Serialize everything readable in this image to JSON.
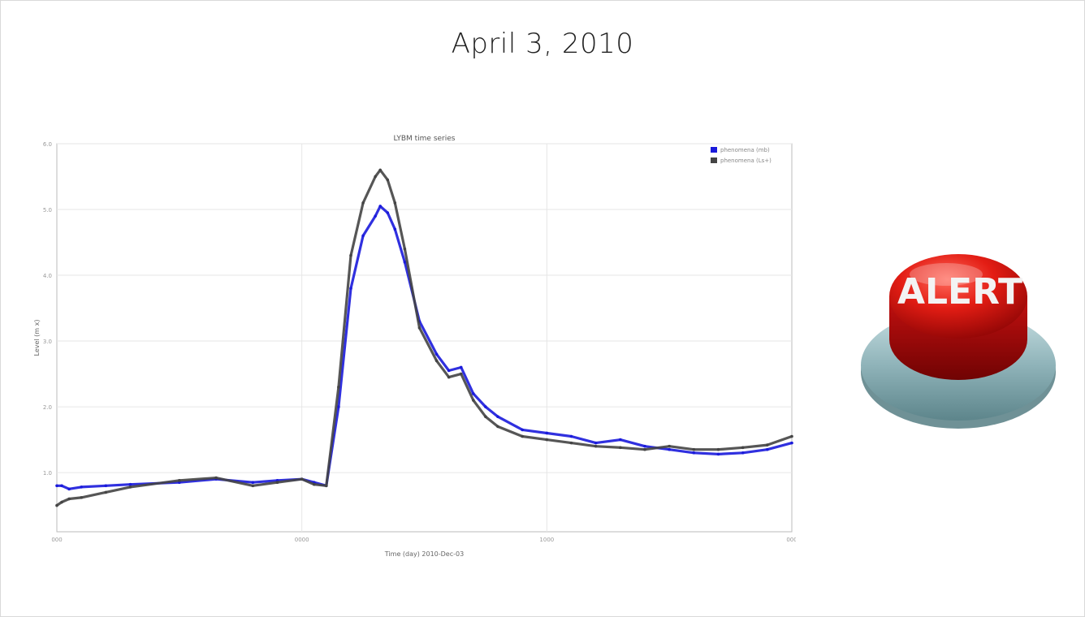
{
  "slide": {
    "title": "April 3, 2010"
  },
  "alert_button": {
    "label": "ALERT",
    "base_color": "#8fb3b9",
    "cap_color": "#d41616"
  },
  "chart_data": {
    "type": "line",
    "title": "LYBM time series",
    "xlabel": "Time (day) 2010-Dec-03",
    "ylabel": "Level (m x)",
    "x_tick_labels": [
      "000",
      "0000",
      "1000",
      "000"
    ],
    "y_tick_labels": [
      "1.0",
      "2.0",
      "3.0",
      "4.0",
      "5.0",
      "6.0"
    ],
    "xlim": [
      0,
      3
    ],
    "ylim": [
      0.1,
      6.0
    ],
    "grid": true,
    "legend_position": "top-right",
    "series": [
      {
        "name": "phenomena (mb)",
        "color": "#1a1adb",
        "x": [
          0.0,
          0.02,
          0.05,
          0.1,
          0.2,
          0.3,
          0.5,
          0.65,
          0.8,
          0.9,
          1.0,
          1.05,
          1.1,
          1.15,
          1.2,
          1.25,
          1.3,
          1.32,
          1.35,
          1.38,
          1.42,
          1.48,
          1.55,
          1.6,
          1.65,
          1.7,
          1.75,
          1.8,
          1.9,
          2.0,
          2.1,
          2.2,
          2.3,
          2.4,
          2.5,
          2.6,
          2.7,
          2.8,
          2.9,
          3.0
        ],
        "values": [
          0.8,
          0.8,
          0.75,
          0.78,
          0.8,
          0.82,
          0.85,
          0.9,
          0.85,
          0.88,
          0.9,
          0.85,
          0.8,
          2.0,
          3.8,
          4.6,
          4.9,
          5.05,
          4.95,
          4.7,
          4.2,
          3.3,
          2.8,
          2.55,
          2.6,
          2.2,
          2.0,
          1.85,
          1.65,
          1.6,
          1.55,
          1.45,
          1.5,
          1.4,
          1.35,
          1.3,
          1.28,
          1.3,
          1.35,
          1.45
        ]
      },
      {
        "name": "phenomena (Ls+)",
        "color": "#444444",
        "x": [
          0.0,
          0.02,
          0.05,
          0.1,
          0.2,
          0.3,
          0.5,
          0.65,
          0.8,
          0.9,
          1.0,
          1.05,
          1.1,
          1.15,
          1.2,
          1.25,
          1.3,
          1.32,
          1.35,
          1.38,
          1.42,
          1.48,
          1.55,
          1.6,
          1.65,
          1.7,
          1.75,
          1.8,
          1.9,
          2.0,
          2.1,
          2.2,
          2.3,
          2.4,
          2.5,
          2.6,
          2.7,
          2.8,
          2.9,
          3.0
        ],
        "values": [
          0.5,
          0.55,
          0.6,
          0.62,
          0.7,
          0.78,
          0.88,
          0.92,
          0.8,
          0.85,
          0.9,
          0.82,
          0.8,
          2.3,
          4.3,
          5.1,
          5.5,
          5.6,
          5.45,
          5.1,
          4.4,
          3.2,
          2.7,
          2.45,
          2.5,
          2.1,
          1.85,
          1.7,
          1.55,
          1.5,
          1.45,
          1.4,
          1.38,
          1.35,
          1.4,
          1.35,
          1.35,
          1.38,
          1.42,
          1.55
        ]
      }
    ]
  }
}
